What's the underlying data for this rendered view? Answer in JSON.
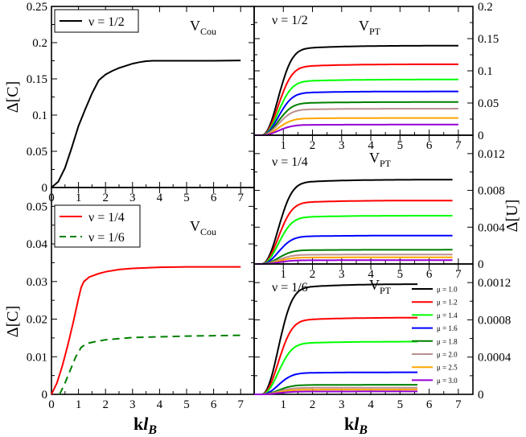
{
  "chart_data": [
    {
      "id": "cou_half",
      "type": "line",
      "title": "V_Cou",
      "title_main": "V",
      "title_sub": "Cou",
      "ylabel": "Δ[C]",
      "xlim": [
        0,
        7.5
      ],
      "ylim": [
        0,
        0.25
      ],
      "xticks": [
        "0",
        "1",
        "2",
        "3",
        "4",
        "5",
        "6",
        "7"
      ],
      "yticks": [
        "0",
        "0.05",
        "0.1",
        "0.15",
        "0.2",
        "0.25"
      ],
      "legend": [
        {
          "label": "ν = 1/2",
          "color": "#000000",
          "dash": false
        }
      ],
      "series": [
        {
          "name": "ν = 1/2",
          "color": "#000000",
          "dash": false,
          "x": [
            0,
            0.25,
            0.5,
            0.75,
            1.0,
            1.25,
            1.5,
            1.75,
            2.0,
            2.25,
            2.5,
            2.75,
            3.0,
            3.25,
            3.5,
            3.75,
            4,
            5,
            6,
            7
          ],
          "y": [
            0,
            0.008,
            0.027,
            0.055,
            0.085,
            0.108,
            0.13,
            0.148,
            0.156,
            0.161,
            0.165,
            0.168,
            0.171,
            0.173,
            0.1745,
            0.175,
            0.175,
            0.175,
            0.175,
            0.1755
          ]
        }
      ]
    },
    {
      "id": "cou_quarter",
      "type": "line",
      "title": "V_Cou",
      "title_main": "V",
      "title_sub": "Cou",
      "xlabel": "kl_B",
      "xlabel_main": "kl",
      "xlabel_sub": "B",
      "ylabel": "Δ[C]",
      "xlim": [
        0,
        7.5
      ],
      "ylim": [
        0,
        0.055
      ],
      "xticks": [
        "0",
        "1",
        "2",
        "3",
        "4",
        "5",
        "6",
        "7"
      ],
      "yticks": [
        "0",
        "0.01",
        "0.02",
        "0.03",
        "0.04",
        "0.05"
      ],
      "legend": [
        {
          "label": "ν = 1/4",
          "color": "#ff0000",
          "dash": false
        },
        {
          "label": "ν = 1/6",
          "color": "#008000",
          "dash": true
        }
      ],
      "series": [
        {
          "name": "ν = 1/4",
          "color": "#ff0000",
          "dash": false,
          "x": [
            0,
            0.2,
            0.4,
            0.6,
            0.8,
            1.0,
            1.1,
            1.2,
            1.4,
            1.7,
            2,
            2.5,
            3,
            4,
            5,
            6,
            7
          ],
          "y": [
            0,
            0.003,
            0.0075,
            0.013,
            0.019,
            0.0255,
            0.0285,
            0.03,
            0.0312,
            0.032,
            0.0326,
            0.0332,
            0.0335,
            0.0338,
            0.0339,
            0.0339,
            0.0339
          ]
        },
        {
          "name": "ν = 1/6",
          "color": "#008000",
          "dash": true,
          "x": [
            0.3,
            0.5,
            0.7,
            0.9,
            1.1,
            1.3,
            1.6,
            2,
            2.5,
            3,
            4,
            5,
            6,
            7
          ],
          "y": [
            0,
            0.003,
            0.0065,
            0.01,
            0.0125,
            0.0135,
            0.014,
            0.0145,
            0.0148,
            0.0151,
            0.0153,
            0.0155,
            0.0156,
            0.0157
          ]
        }
      ]
    },
    {
      "id": "pt_half",
      "type": "line",
      "title": "V_PT",
      "title_main": "V",
      "title_sub": "PT",
      "annotation": "ν = 1/2",
      "xlim": [
        0,
        7.5
      ],
      "ylim": [
        0,
        0.2
      ],
      "xticks": [
        "1",
        "2",
        "3",
        "4",
        "5",
        "6",
        "7"
      ],
      "yticks": [
        "0",
        "0.05",
        "0.1",
        "0.15",
        "0.2"
      ],
      "series": [
        {
          "name": "μ = 1.0",
          "color": "#000000",
          "plateau": 0.135
        },
        {
          "name": "μ = 1.2",
          "color": "#ff0000",
          "plateau": 0.107
        },
        {
          "name": "μ = 1.4",
          "color": "#00ff00",
          "plateau": 0.084
        },
        {
          "name": "μ = 1.6",
          "color": "#0000ff",
          "plateau": 0.066
        },
        {
          "name": "μ = 1.8",
          "color": "#008000",
          "plateau": 0.05
        },
        {
          "name": "μ = 2.0",
          "color": "#bc8f8f",
          "plateau": 0.04
        },
        {
          "name": "μ = 2.5",
          "color": "#ffa500",
          "plateau": 0.026
        },
        {
          "name": "μ = 3.0",
          "color": "#9400d3",
          "plateau": 0.016
        }
      ]
    },
    {
      "id": "pt_quarter",
      "type": "line",
      "title": "V_PT",
      "title_main": "V",
      "title_sub": "PT",
      "annotation": "ν = 1/4",
      "ylabel": "Δ[U]",
      "xlim": [
        0,
        7.5
      ],
      "ylim": [
        0,
        0.014
      ],
      "xticks": [
        "1",
        "2",
        "3",
        "4",
        "5",
        "6",
        "7"
      ],
      "yticks": [
        "0",
        "0.004",
        "0.008",
        "0.012"
      ],
      "series": [
        {
          "name": "μ = 1.0",
          "color": "#000000",
          "plateau": 0.0089
        },
        {
          "name": "μ = 1.2",
          "color": "#ff0000",
          "plateau": 0.0067
        },
        {
          "name": "μ = 1.4",
          "color": "#00ff00",
          "plateau": 0.0051
        },
        {
          "name": "μ = 1.6",
          "color": "#0000ff",
          "plateau": 0.003
        },
        {
          "name": "μ = 1.8",
          "color": "#008000",
          "plateau": 0.0015
        },
        {
          "name": "μ = 2.0",
          "color": "#bc8f8f",
          "plateau": 0.001
        },
        {
          "name": "μ = 2.5",
          "color": "#ffa500",
          "plateau": 0.0007
        },
        {
          "name": "μ = 3.0",
          "color": "#9400d3",
          "plateau": 0.0004
        }
      ]
    },
    {
      "id": "pt_sixth",
      "type": "line",
      "title": "V_PT",
      "title_main": "V",
      "title_sub": "PT",
      "annotation": "ν = 1/6",
      "xlabel": "kl_B",
      "xlabel_main": "kl",
      "xlabel_sub": "B",
      "xlim": [
        0,
        7.5
      ],
      "ylim": [
        0,
        0.0014
      ],
      "xticks": [
        "1",
        "2",
        "3",
        "4",
        "5",
        "6",
        "7"
      ],
      "yticks": [
        "0",
        "0.0004",
        "0.0008",
        "0.0012"
      ],
      "legend": [
        {
          "label": "μ = 1.0",
          "color": "#000000"
        },
        {
          "label": "μ = 1.2",
          "color": "#ff0000"
        },
        {
          "label": "μ = 1.4",
          "color": "#00ff00"
        },
        {
          "label": "μ = 1.6",
          "color": "#0000ff"
        },
        {
          "label": "μ = 1.8",
          "color": "#008000"
        },
        {
          "label": "μ = 2.0",
          "color": "#bc8f8f"
        },
        {
          "label": "μ = 2.5",
          "color": "#ffa500"
        },
        {
          "label": "μ = 3.0",
          "color": "#9400d3"
        }
      ],
      "series": [
        {
          "name": "μ = 1.0",
          "color": "#000000",
          "plateau": 0.00115
        },
        {
          "name": "μ = 1.2",
          "color": "#ff0000",
          "plateau": 0.0008
        },
        {
          "name": "μ = 1.4",
          "color": "#00ff00",
          "plateau": 0.00055
        },
        {
          "name": "μ = 1.6",
          "color": "#0000ff",
          "plateau": 0.00023
        },
        {
          "name": "μ = 1.8",
          "color": "#008000",
          "plateau": 0.0001
        },
        {
          "name": "μ = 2.0",
          "color": "#bc8f8f",
          "plateau": 7e-05
        },
        {
          "name": "μ = 2.5",
          "color": "#ffa500",
          "plateau": 5e-05
        },
        {
          "name": "μ = 3.0",
          "color": "#9400d3",
          "plateau": 3e-05
        }
      ]
    }
  ]
}
